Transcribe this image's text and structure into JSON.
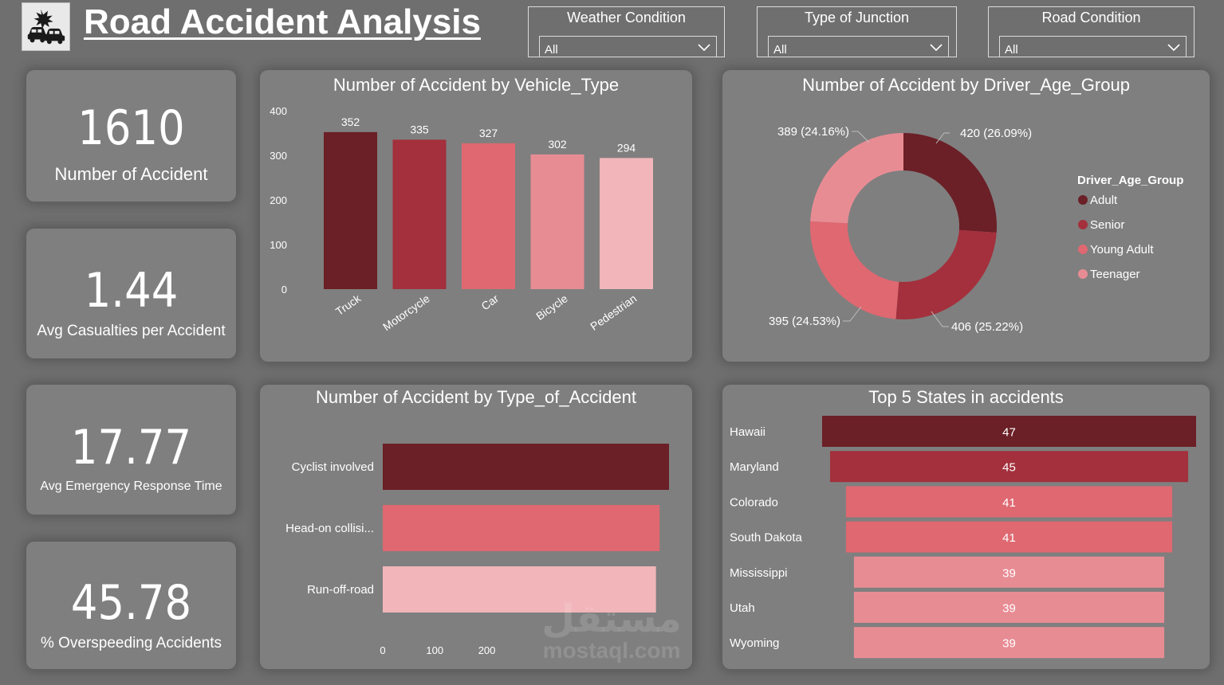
{
  "header": {
    "title": "Road Accident Analysis",
    "logo_icon": "car-crash-icon"
  },
  "filters": [
    {
      "label": "Weather Condition",
      "value": "All"
    },
    {
      "label": "Type of Junction",
      "value": "All"
    },
    {
      "label": "Road Condition",
      "value": "All"
    }
  ],
  "kpis": [
    {
      "value": "1610",
      "label": "Number of Accident"
    },
    {
      "value": "1.44",
      "label": "Avg Casualties per Accident"
    },
    {
      "value": "17.77",
      "label": "Avg Emergency Response Time"
    },
    {
      "value": "45.78",
      "label": "% Overspeeding Accidents"
    }
  ],
  "colors": {
    "dark": "#6b1f26",
    "crimson": "#a3303c",
    "coral": "#df6871",
    "pink": "#e88c94",
    "light_pink": "#f1b5ba"
  },
  "chart_data": [
    {
      "type": "bar",
      "title": "Number of Accident by Vehicle_Type",
      "categories": [
        "Truck",
        "Motorcycle",
        "Car",
        "Bicycle",
        "Pedestrian"
      ],
      "values": [
        352,
        335,
        327,
        302,
        294
      ],
      "data_labels": [
        "352",
        "335",
        "327",
        "302",
        "294"
      ],
      "ylim": [
        0,
        400
      ],
      "yticks": [
        "0",
        "100",
        "200",
        "300",
        "400"
      ],
      "colors": [
        "#6b1f26",
        "#a3303c",
        "#df6871",
        "#e88c94",
        "#f1b5ba"
      ],
      "grid": false
    },
    {
      "type": "pie",
      "variant": "donut",
      "title": "Number of Accident by Driver_Age_Group",
      "legend_title": "Driver_Age_Group",
      "legend_position": "right",
      "labels": [
        "Adult",
        "Senior",
        "Young Adult",
        "Teenager"
      ],
      "values": [
        420,
        406,
        395,
        389
      ],
      "data_labels": [
        "420 (26.09%)",
        "406 (25.22%)",
        "395 (24.53%)",
        "389 (24.16%)"
      ],
      "colors": [
        "#6b1f26",
        "#a3303c",
        "#df6871",
        "#e88c94"
      ]
    },
    {
      "type": "bar",
      "orientation": "horizontal",
      "title": "Number of Accident by Type_of_Accident",
      "categories": [
        "Cyclist involved",
        "Head-on collisi...",
        "Run-off-road"
      ],
      "values": [
        550,
        532,
        525
      ],
      "xlim": [
        0,
        550
      ],
      "xticks": [
        "0",
        "100",
        "200"
      ],
      "colors": [
        "#6b1f26",
        "#df6871",
        "#f1b5ba"
      ],
      "grid": false
    },
    {
      "type": "bar",
      "orientation": "horizontal",
      "title": "Top 5 States in accidents",
      "categories": [
        "Hawaii",
        "Maryland",
        "Colorado",
        "South Dakota",
        "Mississippi",
        "Utah",
        "Wyoming"
      ],
      "values": [
        47,
        45,
        41,
        41,
        39,
        39,
        39
      ],
      "data_labels": [
        "47",
        "45",
        "41",
        "41",
        "39",
        "39",
        "39"
      ],
      "colors": [
        "#6b1f26",
        "#a3303c",
        "#df6871",
        "#df6871",
        "#e88c94",
        "#e88c94",
        "#e88c94"
      ]
    }
  ],
  "watermark": {
    "arabic": "مستقل",
    "latin": "mostaql.com"
  }
}
